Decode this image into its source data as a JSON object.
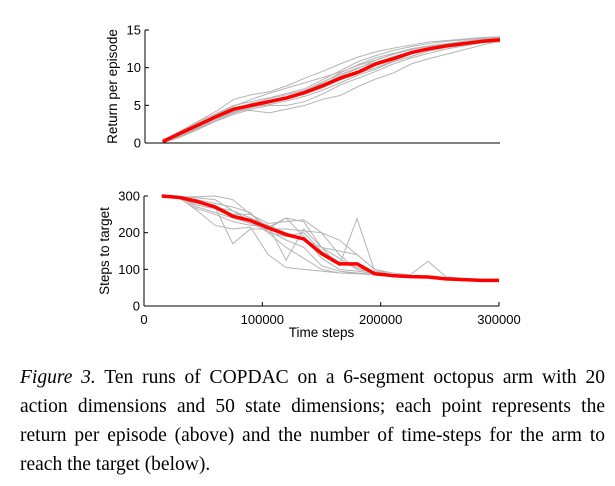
{
  "caption": {
    "label": "Figure 3.",
    "text": "Ten runs of COPDAC on a 6-segment octopus arm with 20 action dimensions and 50 state dimensions; each point represents the return per episode (above) and the number of time-steps for the arm to reach the target (below)."
  },
  "colors": {
    "mean": "#ff0000",
    "runs": "#b4b4b4",
    "axes": "#000000"
  },
  "chart_data": [
    {
      "type": "line",
      "title": "",
      "xlabel": "",
      "ylabel": "Return per episode",
      "xlim": [
        0,
        300000
      ],
      "ylim": [
        0,
        15
      ],
      "yticks": [
        "0",
        "5",
        "10",
        "15"
      ],
      "grid": false,
      "x": [
        15000,
        30000,
        45000,
        60000,
        75000,
        90000,
        105000,
        120000,
        135000,
        150000,
        165000,
        180000,
        195000,
        210000,
        225000,
        240000,
        255000,
        270000,
        285000,
        300000
      ],
      "mean": [
        0.2,
        1.3,
        2.4,
        3.5,
        4.5,
        5.0,
        5.5,
        6.0,
        6.7,
        7.6,
        8.6,
        9.4,
        10.5,
        11.2,
        12.0,
        12.5,
        12.9,
        13.2,
        13.5,
        13.7
      ],
      "runs": [
        [
          0.3,
          1.6,
          2.9,
          4.2,
          5.8,
          6.4,
          6.8,
          7.6,
          8.6,
          9.5,
          10.5,
          11.4,
          12.1,
          12.6,
          13.0,
          13.4,
          13.6,
          13.8,
          14.0,
          14.1
        ],
        [
          0.1,
          1.0,
          2.0,
          3.0,
          4.0,
          4.7,
          5.3,
          5.8,
          6.8,
          8.0,
          9.3,
          10.4,
          11.3,
          11.9,
          12.5,
          12.9,
          13.2,
          13.5,
          13.7,
          13.9
        ],
        [
          0.2,
          1.3,
          2.5,
          3.6,
          4.4,
          4.3,
          4.0,
          4.5,
          5.0,
          5.8,
          6.3,
          7.5,
          8.5,
          9.3,
          10.5,
          11.2,
          11.8,
          12.4,
          13.0,
          13.5
        ],
        [
          0.0,
          0.8,
          1.8,
          2.9,
          3.8,
          4.5,
          5.0,
          5.0,
          5.5,
          6.5,
          7.7,
          8.6,
          9.5,
          10.5,
          11.3,
          11.9,
          12.5,
          12.9,
          13.3,
          13.6
        ],
        [
          0.3,
          1.5,
          2.8,
          3.9,
          5.0,
          5.5,
          6.0,
          6.6,
          7.2,
          8.4,
          9.6,
          10.8,
          11.6,
          12.3,
          12.8,
          13.2,
          13.5,
          13.7,
          13.9,
          14.0
        ],
        [
          0.1,
          1.1,
          2.2,
          3.3,
          4.3,
          5.3,
          5.6,
          5.9,
          6.5,
          7.3,
          8.4,
          9.2,
          10.0,
          10.9,
          11.8,
          12.4,
          12.9,
          13.3,
          13.6,
          13.8
        ],
        [
          0.2,
          1.4,
          2.6,
          3.7,
          4.9,
          5.8,
          6.6,
          7.3,
          8.0,
          8.7,
          9.4,
          10.3,
          11.0,
          11.8,
          12.5,
          12.9,
          13.2,
          13.5,
          13.8,
          14.0
        ],
        [
          0.0,
          0.9,
          1.9,
          3.0,
          4.1,
          4.9,
          5.4,
          6.1,
          6.9,
          7.8,
          8.9,
          9.9,
          11.0,
          11.8,
          12.4,
          12.8,
          13.1,
          13.4,
          13.6,
          13.8
        ],
        [
          0.2,
          1.2,
          2.3,
          3.4,
          4.6,
          5.2,
          5.9,
          6.4,
          7.0,
          8.1,
          9.1,
          10.0,
          10.7,
          11.5,
          12.1,
          12.6,
          13.0,
          13.3,
          13.5,
          13.7
        ],
        [
          0.1,
          1.0,
          2.1,
          3.2,
          4.2,
          4.8,
          5.1,
          5.6,
          6.2,
          7.0,
          8.0,
          9.0,
          9.8,
          10.8,
          11.5,
          12.2,
          12.7,
          13.0,
          13.3,
          13.4
        ]
      ]
    },
    {
      "type": "line",
      "title": "",
      "xlabel": "Time steps",
      "ylabel": "Steps to target",
      "xlim": [
        0,
        300000
      ],
      "ylim": [
        0,
        300
      ],
      "xticks": [
        "0",
        "100000",
        "200000",
        "300000"
      ],
      "yticks": [
        "0",
        "100",
        "200",
        "300"
      ],
      "grid": false,
      "x": [
        15000,
        30000,
        45000,
        60000,
        75000,
        90000,
        105000,
        120000,
        135000,
        150000,
        165000,
        180000,
        195000,
        210000,
        225000,
        240000,
        255000,
        270000,
        285000,
        300000
      ],
      "mean": [
        300,
        296,
        285,
        270,
        245,
        233,
        213,
        195,
        183,
        143,
        115,
        115,
        88,
        83,
        80,
        79,
        74,
        72,
        70,
        70
      ],
      "runs": [
        [
          300,
          298,
          295,
          290,
          260,
          240,
          220,
          200,
          180,
          160,
          130,
          100,
          90,
          85,
          80,
          78,
          75,
          72,
          70,
          70
        ],
        [
          300,
          296,
          280,
          270,
          170,
          210,
          210,
          210,
          205,
          200,
          140,
          100,
          90,
          85,
          82,
          80,
          76,
          73,
          71,
          70
        ],
        [
          300,
          298,
          298,
          300,
          290,
          250,
          215,
          240,
          230,
          160,
          150,
          140,
          100,
          90,
          85,
          122,
          80,
          75,
          72,
          70
        ],
        [
          300,
          293,
          265,
          250,
          230,
          220,
          220,
          125,
          210,
          160,
          110,
          238,
          95,
          85,
          82,
          80,
          76,
          73,
          71,
          70
        ],
        [
          300,
          295,
          260,
          220,
          210,
          215,
          140,
          105,
          100,
          95,
          90,
          90,
          85,
          80,
          78,
          77,
          74,
          72,
          70,
          70
        ],
        [
          300,
          297,
          270,
          255,
          240,
          225,
          205,
          180,
          160,
          110,
          95,
          90,
          85,
          82,
          80,
          78,
          75,
          72,
          70,
          70
        ],
        [
          300,
          296,
          285,
          275,
          250,
          250,
          225,
          230,
          235,
          200,
          180,
          140,
          100,
          85,
          82,
          80,
          76,
          73,
          71,
          70
        ],
        [
          300,
          298,
          290,
          270,
          260,
          230,
          200,
          190,
          200,
          150,
          120,
          105,
          90,
          84,
          81,
          79,
          75,
          72,
          70,
          70
        ],
        [
          300,
          295,
          275,
          265,
          245,
          230,
          210,
          240,
          190,
          130,
          100,
          95,
          88,
          83,
          80,
          78,
          74,
          72,
          70,
          70
        ],
        [
          300,
          297,
          290,
          280,
          270,
          255,
          200,
          160,
          130,
          100,
          90,
          88,
          85,
          82,
          80,
          78,
          75,
          72,
          70,
          70
        ]
      ]
    }
  ]
}
